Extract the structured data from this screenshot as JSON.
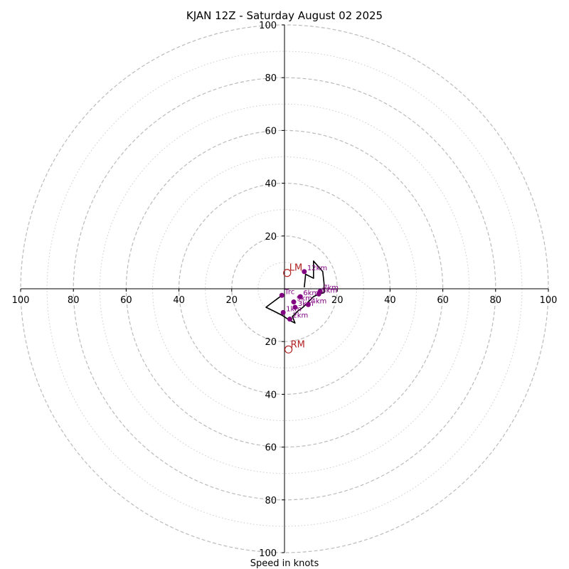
{
  "chart_data": {
    "type": "hodograph",
    "title": "KJAN 12Z - Saturday August 02 2025",
    "xlabel": "Speed in knots",
    "ylabel": "",
    "range": [
      -100,
      100
    ],
    "rings_major": [
      20,
      40,
      60,
      80,
      100
    ],
    "rings_minor": [
      10,
      30,
      50,
      70,
      90
    ],
    "axis_ticks": {
      "x": [
        "100",
        "80",
        "60",
        "40",
        "20",
        "20",
        "40",
        "60",
        "80",
        "100"
      ],
      "y_top": [
        "100",
        "80",
        "60",
        "40",
        "20"
      ],
      "y_bottom": [
        "20",
        "40",
        "60",
        "80",
        "100"
      ]
    },
    "hodograph_trace": [
      [
        -1,
        -2.5
      ],
      [
        -3,
        -4
      ],
      [
        -5,
        -5.5
      ],
      [
        -7,
        -7
      ],
      [
        -4,
        -8.5
      ],
      [
        -1,
        -10
      ],
      [
        2,
        -12
      ],
      [
        4,
        -13
      ],
      [
        3,
        -10.5
      ],
      [
        5,
        -8.5
      ],
      [
        7,
        -7
      ],
      [
        9,
        -5
      ],
      [
        11,
        -3
      ],
      [
        13,
        -2
      ],
      [
        15,
        -1.5
      ],
      [
        15,
        2
      ],
      [
        14.5,
        6.5
      ],
      [
        11,
        10.5
      ],
      [
        11,
        4
      ],
      [
        8,
        5.5
      ],
      [
        7.5,
        0.5
      ]
    ],
    "height_markers": [
      {
        "label": "Trc",
        "u": -1,
        "v": -2.5
      },
      {
        "label": "1km",
        "u": -0.5,
        "v": -9
      },
      {
        "label": "2km",
        "u": 2,
        "v": -11.5
      },
      {
        "label": "3km",
        "u": 4,
        "v": -7
      },
      {
        "label": "4km",
        "u": 9,
        "v": -6
      },
      {
        "label": "5km",
        "u": 13,
        "v": -2
      },
      {
        "label": "6km",
        "u": 6,
        "v": -3
      },
      {
        "label": "7km",
        "u": 13.5,
        "v": -1
      },
      {
        "label": "9km",
        "u": 3.5,
        "v": -5
      },
      {
        "label": "12km",
        "u": 7.5,
        "v": 6.5
      }
    ],
    "storm_motion": [
      {
        "label": "LM",
        "u": 1,
        "v": 6
      },
      {
        "label": "RM",
        "u": 1.5,
        "v": -23
      }
    ],
    "grid": true,
    "colors": {
      "trace": "#000000",
      "markers": "#800080",
      "storm_motion": "#b22222",
      "rings": "#bbbbbb"
    }
  }
}
